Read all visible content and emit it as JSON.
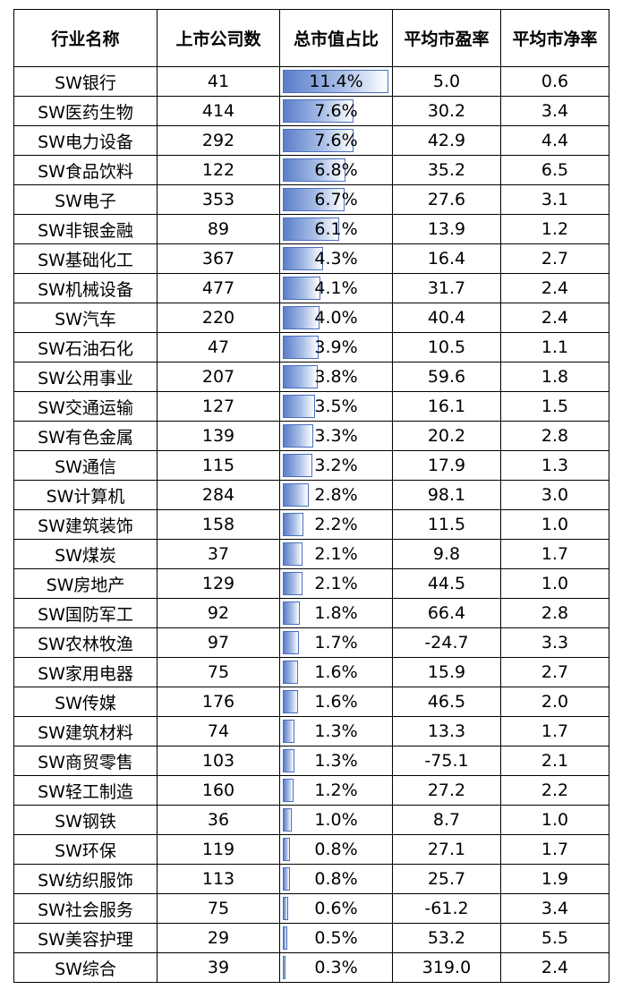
{
  "table": {
    "headers": [
      "行业名称",
      "上市公司数",
      "总市值占比",
      "平均市盈率",
      "平均市净率"
    ],
    "max_share": 11.4,
    "rows": [
      {
        "name": "SW银行",
        "count": "41",
        "share": "11.4%",
        "share_value": 11.4,
        "pe": "5.0",
        "pb": "0.6"
      },
      {
        "name": "SW医药生物",
        "count": "414",
        "share": "7.6%",
        "share_value": 7.6,
        "pe": "30.2",
        "pb": "3.4"
      },
      {
        "name": "SW电力设备",
        "count": "292",
        "share": "7.6%",
        "share_value": 7.6,
        "pe": "42.9",
        "pb": "4.4"
      },
      {
        "name": "SW食品饮料",
        "count": "122",
        "share": "6.8%",
        "share_value": 6.8,
        "pe": "35.2",
        "pb": "6.5"
      },
      {
        "name": "SW电子",
        "count": "353",
        "share": "6.7%",
        "share_value": 6.7,
        "pe": "27.6",
        "pb": "3.1"
      },
      {
        "name": "SW非银金融",
        "count": "89",
        "share": "6.1%",
        "share_value": 6.1,
        "pe": "13.9",
        "pb": "1.2"
      },
      {
        "name": "SW基础化工",
        "count": "367",
        "share": "4.3%",
        "share_value": 4.3,
        "pe": "16.4",
        "pb": "2.7"
      },
      {
        "name": "SW机械设备",
        "count": "477",
        "share": "4.1%",
        "share_value": 4.1,
        "pe": "31.7",
        "pb": "2.4"
      },
      {
        "name": "SW汽车",
        "count": "220",
        "share": "4.0%",
        "share_value": 4.0,
        "pe": "40.4",
        "pb": "2.4"
      },
      {
        "name": "SW石油石化",
        "count": "47",
        "share": "3.9%",
        "share_value": 3.9,
        "pe": "10.5",
        "pb": "1.1"
      },
      {
        "name": "SW公用事业",
        "count": "207",
        "share": "3.8%",
        "share_value": 3.8,
        "pe": "59.6",
        "pb": "1.8"
      },
      {
        "name": "SW交通运输",
        "count": "127",
        "share": "3.5%",
        "share_value": 3.5,
        "pe": "16.1",
        "pb": "1.5"
      },
      {
        "name": "SW有色金属",
        "count": "139",
        "share": "3.3%",
        "share_value": 3.3,
        "pe": "20.2",
        "pb": "2.8"
      },
      {
        "name": "SW通信",
        "count": "115",
        "share": "3.2%",
        "share_value": 3.2,
        "pe": "17.9",
        "pb": "1.3"
      },
      {
        "name": "SW计算机",
        "count": "284",
        "share": "2.8%",
        "share_value": 2.8,
        "pe": "98.1",
        "pb": "3.0"
      },
      {
        "name": "SW建筑装饰",
        "count": "158",
        "share": "2.2%",
        "share_value": 2.2,
        "pe": "11.5",
        "pb": "1.0"
      },
      {
        "name": "SW煤炭",
        "count": "37",
        "share": "2.1%",
        "share_value": 2.1,
        "pe": "9.8",
        "pb": "1.7"
      },
      {
        "name": "SW房地产",
        "count": "129",
        "share": "2.1%",
        "share_value": 2.1,
        "pe": "44.5",
        "pb": "1.0"
      },
      {
        "name": "SW国防军工",
        "count": "92",
        "share": "1.8%",
        "share_value": 1.8,
        "pe": "66.4",
        "pb": "2.8"
      },
      {
        "name": "SW农林牧渔",
        "count": "97",
        "share": "1.7%",
        "share_value": 1.7,
        "pe": "-24.7",
        "pb": "3.3"
      },
      {
        "name": "SW家用电器",
        "count": "75",
        "share": "1.6%",
        "share_value": 1.6,
        "pe": "15.9",
        "pb": "2.7"
      },
      {
        "name": "SW传媒",
        "count": "176",
        "share": "1.6%",
        "share_value": 1.6,
        "pe": "46.5",
        "pb": "2.0"
      },
      {
        "name": "SW建筑材料",
        "count": "74",
        "share": "1.3%",
        "share_value": 1.3,
        "pe": "13.3",
        "pb": "1.7"
      },
      {
        "name": "SW商贸零售",
        "count": "103",
        "share": "1.3%",
        "share_value": 1.3,
        "pe": "-75.1",
        "pb": "2.1"
      },
      {
        "name": "SW轻工制造",
        "count": "160",
        "share": "1.2%",
        "share_value": 1.2,
        "pe": "27.2",
        "pb": "2.2"
      },
      {
        "name": "SW钢铁",
        "count": "36",
        "share": "1.0%",
        "share_value": 1.0,
        "pe": "8.7",
        "pb": "1.0"
      },
      {
        "name": "SW环保",
        "count": "119",
        "share": "0.8%",
        "share_value": 0.8,
        "pe": "27.1",
        "pb": "1.7"
      },
      {
        "name": "SW纺织服饰",
        "count": "113",
        "share": "0.8%",
        "share_value": 0.8,
        "pe": "25.7",
        "pb": "1.9"
      },
      {
        "name": "SW社会服务",
        "count": "75",
        "share": "0.6%",
        "share_value": 0.6,
        "pe": "-61.2",
        "pb": "3.4"
      },
      {
        "name": "SW美容护理",
        "count": "29",
        "share": "0.5%",
        "share_value": 0.5,
        "pe": "53.2",
        "pb": "5.5"
      },
      {
        "name": "SW综合",
        "count": "39",
        "share": "0.3%",
        "share_value": 0.3,
        "pe": "319.0",
        "pb": "2.4"
      }
    ]
  }
}
